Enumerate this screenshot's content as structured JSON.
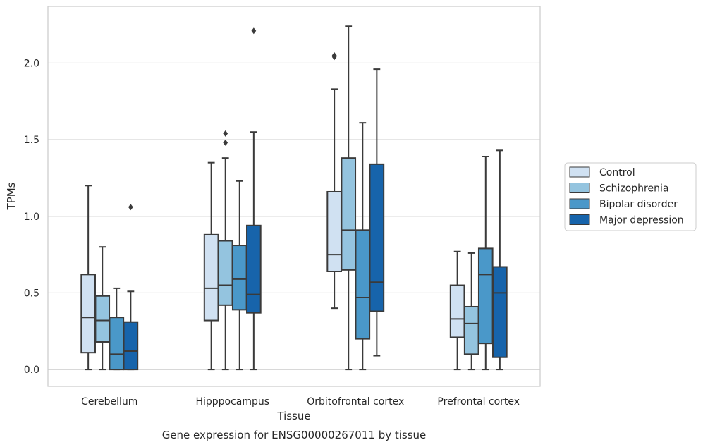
{
  "chart_data": {
    "type": "box",
    "xlabel": "Tissue",
    "ylabel": "TPMs",
    "caption": "Gene expression for ENSG00000267011 by tissue",
    "ylim": [
      -0.11,
      2.37
    ],
    "yticks": [
      "0.0",
      "0.5",
      "1.0",
      "1.5",
      "2.0"
    ],
    "ytick_values": [
      0.0,
      0.5,
      1.0,
      1.5,
      2.0
    ],
    "grid": "horizontal",
    "legend_position": "right",
    "categories": [
      "Cerebellum",
      "Hipppocampus",
      "Orbitofrontal cortex",
      "Prefrontal cortex"
    ],
    "series": [
      {
        "name": "Control",
        "color": "#d0e1f2",
        "boxes": [
          {
            "whislo": 0.0,
            "q1": 0.11,
            "med": 0.34,
            "q3": 0.62,
            "whishi": 1.2,
            "fliers": []
          },
          {
            "whislo": 0.0,
            "q1": 0.32,
            "med": 0.53,
            "q3": 0.88,
            "whishi": 1.35,
            "fliers": []
          },
          {
            "whislo": 0.4,
            "q1": 0.64,
            "med": 0.75,
            "q3": 1.16,
            "whishi": 1.83,
            "fliers": [
              2.04,
              2.05
            ]
          },
          {
            "whislo": 0.0,
            "q1": 0.21,
            "med": 0.33,
            "q3": 0.55,
            "whishi": 0.77,
            "fliers": []
          }
        ]
      },
      {
        "name": "Schizophrenia",
        "color": "#94c4df",
        "boxes": [
          {
            "whislo": 0.0,
            "q1": 0.18,
            "med": 0.32,
            "q3": 0.48,
            "whishi": 0.8,
            "fliers": []
          },
          {
            "whislo": 0.0,
            "q1": 0.42,
            "med": 0.55,
            "q3": 0.84,
            "whishi": 1.38,
            "fliers": [
              1.48,
              1.54
            ]
          },
          {
            "whislo": 0.0,
            "q1": 0.65,
            "med": 0.91,
            "q3": 1.38,
            "whishi": 2.24,
            "fliers": []
          },
          {
            "whislo": 0.0,
            "q1": 0.1,
            "med": 0.3,
            "q3": 0.41,
            "whishi": 0.76,
            "fliers": []
          }
        ]
      },
      {
        "name": "Bipolar disorder",
        "color": "#4a98c9",
        "boxes": [
          {
            "whislo": 0.0,
            "q1": 0.0,
            "med": 0.1,
            "q3": 0.34,
            "whishi": 0.53,
            "fliers": []
          },
          {
            "whislo": 0.0,
            "q1": 0.39,
            "med": 0.59,
            "q3": 0.81,
            "whishi": 1.23,
            "fliers": []
          },
          {
            "whislo": 0.0,
            "q1": 0.2,
            "med": 0.47,
            "q3": 0.91,
            "whishi": 1.61,
            "fliers": []
          },
          {
            "whislo": 0.0,
            "q1": 0.17,
            "med": 0.62,
            "q3": 0.79,
            "whishi": 1.39,
            "fliers": []
          }
        ]
      },
      {
        "name": "Major depression",
        "color": "#1764ab",
        "boxes": [
          {
            "whislo": 0.0,
            "q1": 0.0,
            "med": 0.12,
            "q3": 0.31,
            "whishi": 0.51,
            "fliers": [
              1.06
            ]
          },
          {
            "whislo": 0.0,
            "q1": 0.37,
            "med": 0.49,
            "q3": 0.94,
            "whishi": 1.55,
            "fliers": [
              2.21
            ]
          },
          {
            "whislo": 0.09,
            "q1": 0.38,
            "med": 0.57,
            "q3": 1.34,
            "whishi": 1.96,
            "fliers": []
          },
          {
            "whislo": 0.0,
            "q1": 0.08,
            "med": 0.5,
            "q3": 0.67,
            "whishi": 1.43,
            "fliers": []
          }
        ]
      }
    ]
  }
}
